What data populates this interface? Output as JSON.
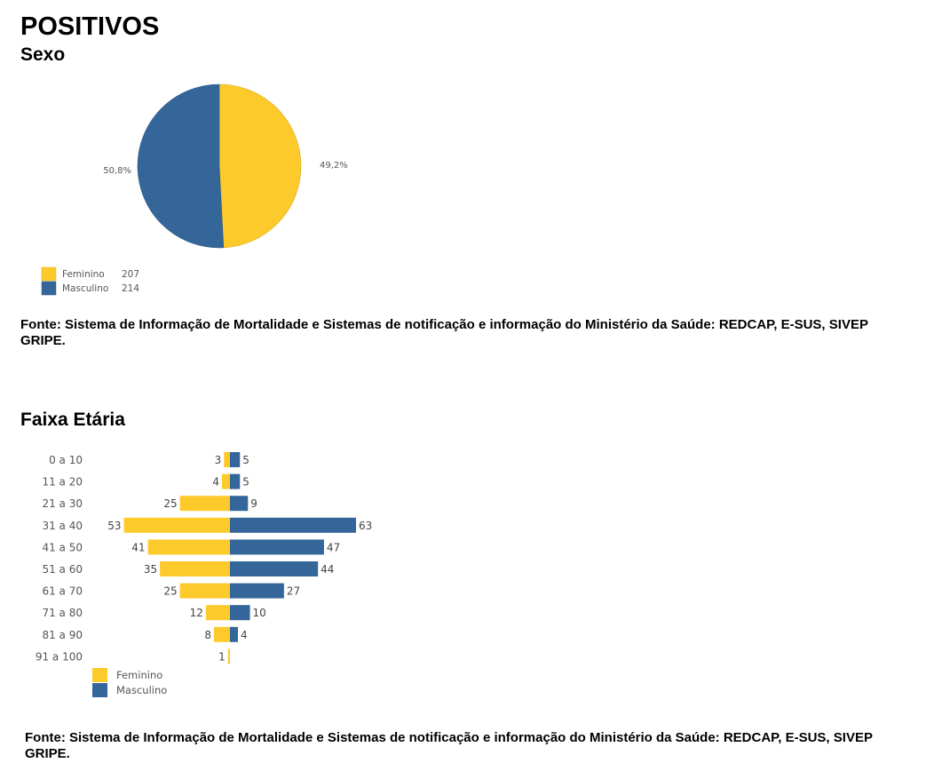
{
  "page": {
    "title": "POSITIVOS",
    "section1_title": "Sexo",
    "section2_title": "Faixa Etária",
    "source1": "Fonte: Sistema de Informação de Mortalidade e Sistemas de notificação e informação do Ministério da Saúde: REDCAP, E-SUS, SIVEP GRIPE.",
    "source2": "Fonte: Sistema de Informação de Mortalidade e Sistemas de notificação e informação do Ministério da Saúde: REDCAP, E-SUS, SIVEP GRIPE."
  },
  "colors": {
    "feminino": "#FDCA2B",
    "masculino": "#346699"
  },
  "chart_data": [
    {
      "type": "pie",
      "title": "Sexo",
      "slices": [
        {
          "label": "Feminino",
          "value": 207,
          "percent_label": "49,2%",
          "color": "#FDCA2B"
        },
        {
          "label": "Masculino",
          "value": 214,
          "percent_label": "50,8%",
          "color": "#346699"
        }
      ],
      "legend_placement": "bottom-left"
    },
    {
      "type": "bar",
      "orientation": "horizontal-diverging",
      "title": "Faixa Etária",
      "categories": [
        "0 a 10",
        "11 a 20",
        "21 a 30",
        "31 a 40",
        "41 a 50",
        "51 a 60",
        "61 a 70",
        "71 a 80",
        "81 a 90",
        "91 a 100"
      ],
      "series": [
        {
          "name": "Feminino",
          "color": "#FDCA2B",
          "values": [
            3,
            4,
            25,
            53,
            41,
            35,
            25,
            12,
            8,
            1
          ]
        },
        {
          "name": "Masculino",
          "color": "#346699",
          "values": [
            5,
            5,
            9,
            63,
            47,
            44,
            27,
            10,
            4,
            null
          ]
        }
      ],
      "legend_placement": "bottom-left"
    }
  ]
}
